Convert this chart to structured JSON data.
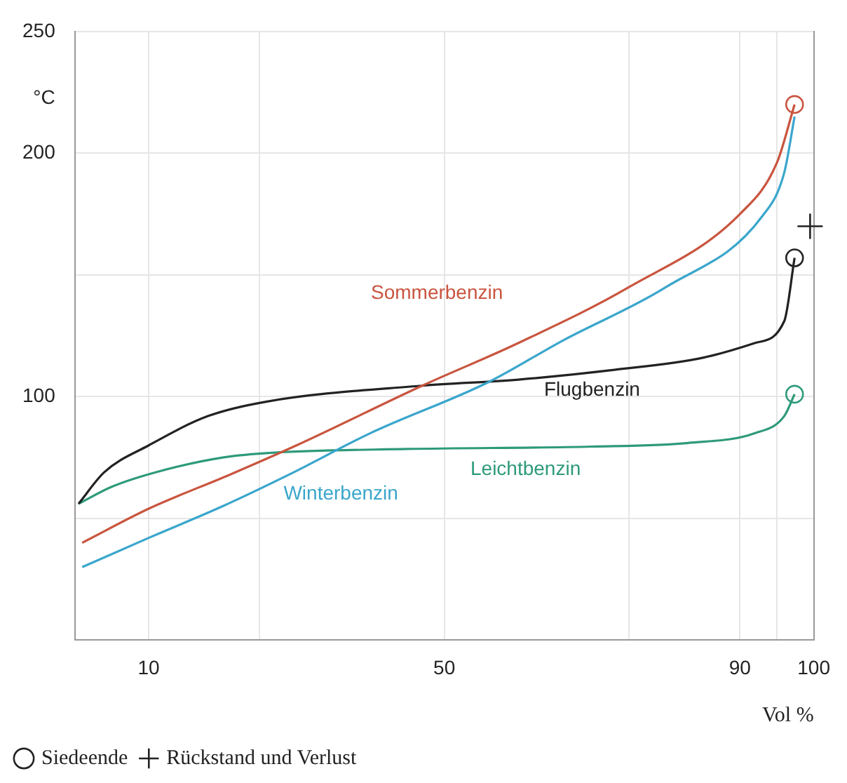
{
  "chart_data": {
    "type": "line",
    "xlabel": "Vol %",
    "ylabel": "°C",
    "xlim": [
      0,
      100
    ],
    "ylim": [
      0,
      250
    ],
    "xticks": [
      {
        "value": 0,
        "label": null
      },
      10,
      {
        "value": 25,
        "label": null
      },
      50,
      {
        "value": 75,
        "label": null
      },
      90,
      {
        "value": 95,
        "label": null
      },
      100
    ],
    "yticks": [
      {
        "value": 0,
        "label": null
      },
      {
        "value": 50,
        "label": null
      },
      100,
      {
        "value": 150,
        "label": null
      },
      200,
      250
    ],
    "grid": true,
    "legend": "bottom left",
    "line_style": "solid",
    "series": [
      {
        "name": "Sommerbenzin",
        "type": "line",
        "marker": "none",
        "color": "#c9553f",
        "x": [
          1,
          10,
          21,
          30,
          47,
          60,
          75,
          90,
          95,
          97.4
        ],
        "values": [
          40,
          54,
          68,
          80,
          104.5,
          122,
          145,
          175,
          196,
          220
        ]
      },
      {
        "name": "Winterbenzin",
        "type": "line",
        "marker": "none",
        "color": "#3aa6cc",
        "x": [
          1,
          10,
          20,
          29,
          40,
          56,
          66,
          80,
          93,
          96,
          97.4
        ],
        "values": [
          30,
          42,
          55,
          68,
          85,
          106,
          123,
          145,
          174,
          192,
          215
        ]
      },
      {
        "name": "Flugbenzin",
        "type": "line",
        "marker": "none",
        "color": "#222222",
        "x": [
          0.5,
          4,
          10,
          18,
          26,
          47,
          60,
          73,
          85,
          92,
          96,
          97.4
        ],
        "values": [
          56,
          69,
          80,
          92,
          98,
          104.5,
          107,
          111,
          116,
          122,
          131,
          157
        ]
      },
      {
        "name": "Leichtbenzin",
        "type": "line",
        "marker": "none",
        "color": "#2e9a7a",
        "x": [
          0.5,
          5,
          11,
          20,
          27,
          45,
          70,
          83,
          92,
          96,
          97.4
        ],
        "values": [
          56,
          63,
          69,
          75,
          77,
          78.5,
          79.5,
          81,
          85,
          92,
          101
        ]
      },
      {
        "name": "Siedeende",
        "type": "scatter",
        "marker": "circle",
        "color": "#222222",
        "colors": [
          "#c9553f",
          "#222222",
          "#2e9a7a"
        ],
        "x": [
          97.4,
          97.4,
          97.4
        ],
        "values": [
          220,
          157,
          101
        ]
      },
      {
        "name": "Rückstand und Verlust",
        "type": "scatter",
        "marker": "cross",
        "color": "#222222",
        "x": [
          99.5
        ],
        "values": [
          170
        ]
      }
    ]
  }
}
